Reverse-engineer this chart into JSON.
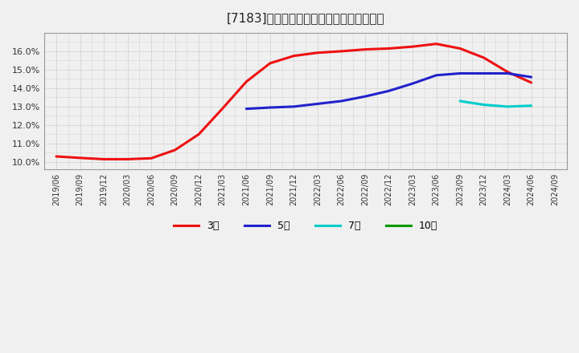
{
  "title": "[7183]　経常利益マージンの平均値の推移",
  "background_color": "#f0f0f0",
  "plot_background_color": "#f0f0f0",
  "grid_color": "#aaaaaa",
  "ylim": [
    0.096,
    0.17
  ],
  "yticks": [
    0.1,
    0.11,
    0.12,
    0.13,
    0.14,
    0.15,
    0.16
  ],
  "xlabel_dates": [
    "2019/06",
    "2019/09",
    "2019/12",
    "2020/03",
    "2020/06",
    "2020/09",
    "2020/12",
    "2021/03",
    "2021/06",
    "2021/09",
    "2021/12",
    "2022/03",
    "2022/06",
    "2022/09",
    "2022/12",
    "2023/03",
    "2023/06",
    "2023/09",
    "2023/12",
    "2024/03",
    "2024/06",
    "2024/09"
  ],
  "series_3y": {
    "label": "3年",
    "color": "#ee1111",
    "x": [
      0,
      1,
      2,
      3,
      4,
      5,
      6,
      7,
      8,
      9,
      10,
      11,
      12,
      13,
      14,
      15,
      16,
      17,
      18,
      19,
      20
    ],
    "y": [
      0.103,
      0.1022,
      0.1015,
      0.1015,
      0.102,
      0.1065,
      0.115,
      0.129,
      0.1435,
      0.1535,
      0.1575,
      0.1592,
      0.16,
      0.161,
      0.1615,
      0.1625,
      0.164,
      0.1615,
      0.1565,
      0.1488,
      0.143
    ]
  },
  "series_5y": {
    "label": "5年",
    "color": "#2222cc",
    "x": [
      8,
      9,
      10,
      11,
      12,
      13,
      14,
      15,
      16,
      17,
      18,
      19,
      20
    ],
    "y": [
      0.1288,
      0.1295,
      0.13,
      0.1315,
      0.133,
      0.1355,
      0.1385,
      0.1425,
      0.147,
      0.148,
      0.148,
      0.148,
      0.146
    ]
  },
  "series_7y": {
    "label": "7年",
    "color": "#00cccc",
    "x": [
      17,
      18,
      19,
      20
    ],
    "y": [
      0.133,
      0.131,
      0.13,
      0.1305
    ]
  },
  "series_10y": {
    "label": "10年",
    "color": "#009900",
    "x": [
      20
    ],
    "y": [
      0.1305
    ]
  },
  "legend_labels": [
    "3年",
    "5年",
    "7年",
    "10年"
  ],
  "legend_colors": [
    "#ee1111",
    "#2222cc",
    "#00cccc",
    "#009900"
  ]
}
